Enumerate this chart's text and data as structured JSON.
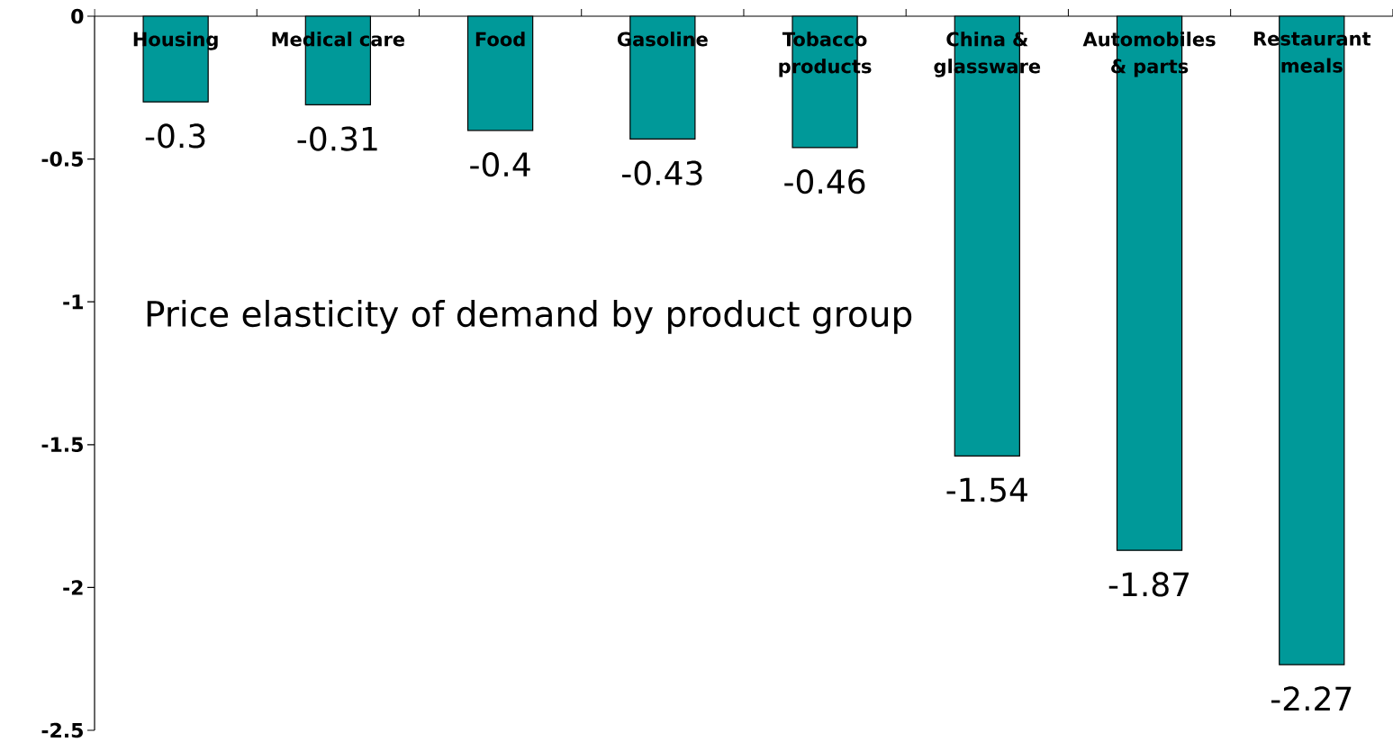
{
  "chart_data": {
    "type": "bar",
    "title": "Price elasticity of demand by product group",
    "categories": [
      "Housing",
      "Medical care",
      "Food",
      "Gasoline",
      "Tobacco products",
      "China & glassware",
      "Automobiles & parts",
      "Restaurant meals"
    ],
    "values": [
      -0.3,
      -0.31,
      -0.4,
      -0.43,
      -0.46,
      -1.54,
      -1.87,
      -2.27
    ],
    "color": "#009999",
    "ylim": [
      -2.5,
      0
    ],
    "yticks": [
      0,
      -0.5,
      -1,
      -1.5,
      -2,
      -2.5
    ],
    "data_labels": true,
    "grid": false
  }
}
